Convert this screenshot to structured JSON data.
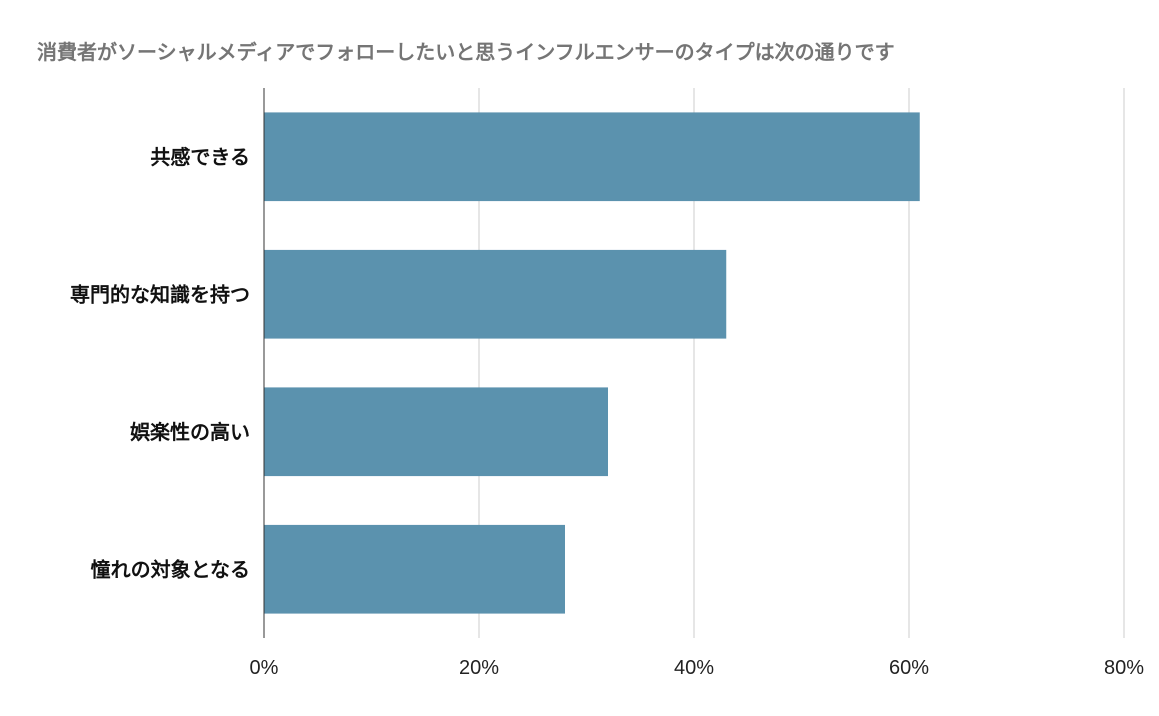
{
  "chart_data": {
    "type": "bar",
    "orientation": "horizontal",
    "title": "消費者がソーシャルメディアでフォローしたいと思うインフルエンサーのタイプは次の通りです",
    "categories": [
      "共感できる",
      "専門的な知識を持つ",
      "娯楽性の高い",
      "憧れの対象となる"
    ],
    "values": [
      61,
      43,
      32,
      28
    ],
    "unit": "%",
    "xlim": [
      0,
      80
    ],
    "xticks": [
      0,
      20,
      40,
      60,
      80
    ],
    "xtick_labels": [
      "0%",
      "20%",
      "40%",
      "60%",
      "80%"
    ],
    "grid": "vertical",
    "legend": "none",
    "colors": {
      "bar": "#5b92ae",
      "grid": "#cccccc",
      "axis": "#333333",
      "title": "#757575"
    }
  }
}
